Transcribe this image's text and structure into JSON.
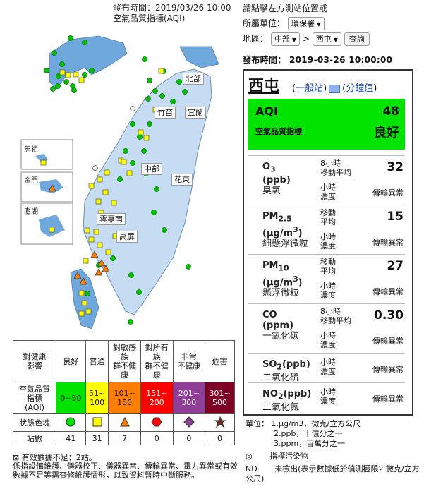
{
  "header": {
    "publish_time": "發布時間：2019/03/26 10:00",
    "aqi_title": "空氣品質指標(AQI)"
  },
  "map": {
    "insets": [
      "馬祖",
      "金門",
      "澎湖"
    ],
    "regions": [
      "北部",
      "竹苗",
      "宜蘭",
      "中部",
      "花東",
      "雲嘉南",
      "高屏"
    ]
  },
  "legend": {
    "row_header": "對健康\n影響",
    "levels": [
      {
        "label": "良好",
        "range": "0~50",
        "color": "#00e400",
        "symbol": "circle",
        "count": "41"
      },
      {
        "label": "普通",
        "range": "51~\n100",
        "color": "#ffff00",
        "symbol": "square",
        "count": "31"
      },
      {
        "label": "對敏感\n族\n群不健\n康",
        "range": "101~\n150",
        "color": "#ff7e00",
        "symbol": "triangle",
        "count": "7"
      },
      {
        "label": "對所有\n族\n群不健\n康",
        "range": "151~\n200",
        "color": "#ff0000",
        "symbol": "hexagon",
        "count": "0"
      },
      {
        "label": "非常\n不健康",
        "range": "201~\n300",
        "color": "#8f3f97",
        "symbol": "diamond",
        "count": "0"
      },
      {
        "label": "危害",
        "range": "301~\n500",
        "color": "#7e0023",
        "symbol": "star",
        "count": "0"
      }
    ],
    "range_header": "空氣品質\n指標\n(AQI)",
    "symbol_header": "狀態色塊",
    "count_header": "站數",
    "note_insufficient": "有效數據不足：2站。",
    "note_maintenance": "係指設備維護、儀器校正、儀器異常、傳輸異常、電力異常或有效數據不足等需查修維護情形，以致資料暫時中斷服務。"
  },
  "controls": {
    "hint": "請點擊左方測站位置或",
    "unit_label": "所屬單位：",
    "unit_value": "環保署",
    "area_label": "地區：",
    "area_value": "中部",
    "arrow": ">",
    "station_value": "西屯",
    "query_button": "查詢",
    "publish_time": "發布時間：  2019-03-26 10:00:00"
  },
  "station": {
    "name": "西屯",
    "type_link": "一般站",
    "minute_link": "分鐘值",
    "aqi_label": "AQI",
    "aqi_value": "48",
    "aqi_sub": "空氣品質指標",
    "aqi_status": "良好"
  },
  "pollutants": [
    {
      "name": "O3",
      "sub": "3",
      "unit": "(ppb)",
      "zh": "臭氧",
      "avg": "8小時\n移動平均",
      "avg_value": "32",
      "conc": "小時\n濃度",
      "status": "傳輸異常"
    },
    {
      "name": "PM2.5",
      "sub": "2.5",
      "unit": "(μg/m3)",
      "zh": "細懸浮微粒",
      "avg": "移動\n平均",
      "avg_value": "15",
      "conc": "小時\n濃度",
      "status": "傳輸異常"
    },
    {
      "name": "PM10",
      "sub": "10",
      "unit": "(μg/m3)",
      "zh": "懸浮微粒",
      "avg": "移動\n平均",
      "avg_value": "27",
      "conc": "小時\n濃度",
      "status": "傳輸異常"
    },
    {
      "name": "CO",
      "sub": "",
      "unit": "(ppm)",
      "zh": "一氧化碳",
      "avg": "8小時\n移動平均",
      "avg_value": "0.30",
      "conc": "小時\n濃度",
      "status": "傳輸異常"
    },
    {
      "name": "SO2(ppb)",
      "sub": "2",
      "unit": "",
      "zh": "二氧化硫",
      "avg": "小時\n濃度",
      "avg_value": "",
      "conc": "",
      "status": "傳輸異常"
    },
    {
      "name": "NO2(ppb)",
      "sub": "2",
      "unit": "",
      "zh": "二氧化氮",
      "avg": "小時\n濃度",
      "avg_value": "",
      "conc": "",
      "status": "傳輸異常"
    }
  ],
  "units_note": {
    "label": "單位：",
    "u1": "1.μg/m3，微克/立方公尺",
    "u2": "2.ppb，十億分之一",
    "u3": "3.ppm，百萬分之一",
    "mark": "◎",
    "mark_desc": "指標污染物",
    "nd": "ND",
    "nd_desc": "未檢出(表示數據低於偵測極限2 微克/立方公尺)"
  }
}
